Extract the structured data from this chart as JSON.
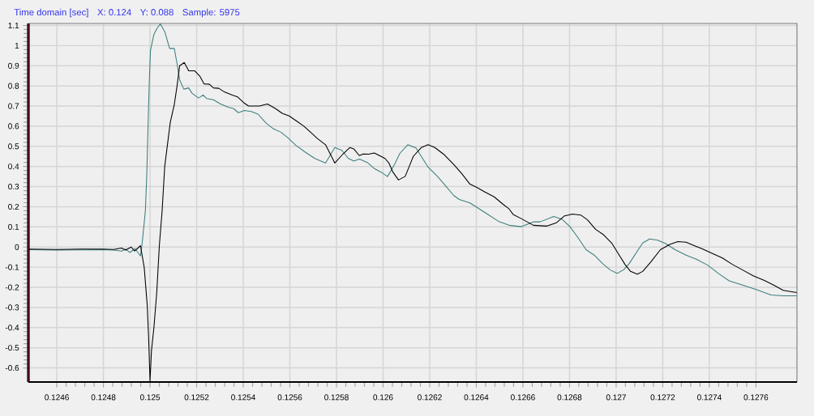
{
  "chart_data": {
    "type": "line",
    "title": "Time domain [sec]",
    "annotations": [
      "X: 0.124",
      "Y: 0.088",
      "Sample: 5975"
    ],
    "xlim": [
      0.124478,
      0.127776
    ],
    "ylim": [
      -0.67,
      1.11
    ],
    "xticks": [
      0.1246,
      0.1248,
      0.125,
      0.1252,
      0.1254,
      0.1256,
      0.1258,
      0.126,
      0.1262,
      0.1264,
      0.1266,
      0.1268,
      0.127,
      0.1272,
      0.1274,
      0.1276
    ],
    "yticks": [
      -0.6,
      -0.5,
      -0.4,
      -0.3,
      -0.2,
      -0.1,
      0,
      0.1,
      0.2,
      0.3,
      0.4,
      0.5,
      0.6,
      0.7,
      0.8,
      0.9,
      1,
      1.1
    ],
    "grid": true,
    "series": [
      {
        "color": "#3d7f7d",
        "x": [
          0.124478,
          0.1246,
          0.124704,
          0.124798,
          0.124843,
          0.124878,
          0.124895,
          0.124913,
          0.124936,
          0.124959,
          0.124965,
          0.124971,
          0.12498,
          0.124986,
          0.124992,
          0.124997,
          0.125002,
          0.125017,
          0.125029,
          0.125044,
          0.125063,
          0.125084,
          0.125104,
          0.125116,
          0.125127,
          0.125145,
          0.125166,
          0.12518,
          0.125208,
          0.125228,
          0.125243,
          0.125272,
          0.125301,
          0.125336,
          0.125359,
          0.125379,
          0.125405,
          0.125434,
          0.125463,
          0.125498,
          0.125527,
          0.125562,
          0.125591,
          0.125626,
          0.125666,
          0.125707,
          0.125753,
          0.125793,
          0.125823,
          0.125851,
          0.125875,
          0.125898,
          0.125932,
          0.125962,
          0.12599,
          0.126019,
          0.126049,
          0.126072,
          0.126106,
          0.126141,
          0.126164,
          0.126193,
          0.126234,
          0.126269,
          0.126303,
          0.126327,
          0.126373,
          0.126396,
          0.126442,
          0.126495,
          0.126541,
          0.126593,
          0.126645,
          0.126674,
          0.126732,
          0.126767,
          0.126802,
          0.126836,
          0.126871,
          0.126906,
          0.126941,
          0.126975,
          0.127005,
          0.127033,
          0.127057,
          0.127091,
          0.127114,
          0.127144,
          0.127178,
          0.127213,
          0.127253,
          0.1273,
          0.127346,
          0.127393,
          0.127439,
          0.127485,
          0.127543,
          0.127601,
          0.127665,
          0.127717,
          0.127775
        ],
        "values": [
          -0.013,
          -0.015,
          -0.014,
          -0.013,
          -0.015,
          -0.02,
          -0.01,
          -0.027,
          -0.008,
          -0.044,
          0.007,
          0.074,
          0.18,
          0.357,
          0.626,
          0.83,
          0.977,
          1.057,
          1.084,
          1.108,
          1.07,
          0.986,
          0.986,
          0.91,
          0.83,
          0.784,
          0.79,
          0.764,
          0.74,
          0.755,
          0.737,
          0.731,
          0.711,
          0.694,
          0.687,
          0.667,
          0.678,
          0.673,
          0.66,
          0.615,
          0.589,
          0.57,
          0.543,
          0.505,
          0.471,
          0.44,
          0.417,
          0.494,
          0.48,
          0.44,
          0.427,
          0.437,
          0.42,
          0.39,
          0.373,
          0.35,
          0.41,
          0.465,
          0.508,
          0.492,
          0.45,
          0.397,
          0.35,
          0.303,
          0.256,
          0.236,
          0.219,
          0.202,
          0.168,
          0.128,
          0.108,
          0.101,
          0.125,
          0.125,
          0.152,
          0.139,
          0.101,
          0.047,
          -0.013,
          -0.04,
          -0.081,
          -0.114,
          -0.131,
          -0.112,
          -0.081,
          -0.02,
          0.02,
          0.04,
          0.034,
          0.017,
          -0.013,
          -0.04,
          -0.061,
          -0.09,
          -0.131,
          -0.168,
          -0.189,
          -0.211,
          -0.238,
          -0.242,
          -0.242
        ]
      },
      {
        "color": "#000000",
        "x": [
          0.124478,
          0.1246,
          0.124704,
          0.124798,
          0.124843,
          0.124878,
          0.124895,
          0.124919,
          0.124934,
          0.124948,
          0.124959,
          0.124975,
          0.124988,
          0.124994,
          0.125,
          0.125006,
          0.125017,
          0.125029,
          0.12504,
          0.125052,
          0.125063,
          0.125087,
          0.125104,
          0.125116,
          0.125127,
          0.125147,
          0.125166,
          0.125191,
          0.125214,
          0.125232,
          0.125255,
          0.125272,
          0.125295,
          0.125319,
          0.125353,
          0.125376,
          0.125405,
          0.125423,
          0.125469,
          0.125504,
          0.125539,
          0.125567,
          0.125597,
          0.125631,
          0.12566,
          0.125689,
          0.125718,
          0.125753,
          0.125793,
          0.125828,
          0.125857,
          0.125875,
          0.125898,
          0.125915,
          0.125938,
          0.125962,
          0.12599,
          0.126008,
          0.126025,
          0.126043,
          0.126066,
          0.126095,
          0.12613,
          0.126164,
          0.126193,
          0.126222,
          0.126263,
          0.126303,
          0.126338,
          0.126373,
          0.126402,
          0.126437,
          0.126477,
          0.126512,
          0.126541,
          0.126558,
          0.126593,
          0.126645,
          0.126703,
          0.126744,
          0.126779,
          0.126813,
          0.126848,
          0.126877,
          0.126912,
          0.126946,
          0.126981,
          0.12701,
          0.127039,
          0.127062,
          0.127091,
          0.127114,
          0.127149,
          0.12719,
          0.12723,
          0.127265,
          0.1273,
          0.127335,
          0.12737,
          0.127404,
          0.127456,
          0.127497,
          0.127543,
          0.12759,
          0.127636,
          0.127676,
          0.127717,
          0.127775
        ],
        "values": [
          -0.01,
          -0.012,
          -0.01,
          -0.01,
          -0.012,
          -0.005,
          -0.015,
          0,
          -0.02,
          -0.005,
          0.007,
          -0.101,
          -0.29,
          -0.452,
          -0.665,
          -0.517,
          -0.396,
          -0.222,
          0.008,
          0.182,
          0.4,
          0.62,
          0.707,
          0.8,
          0.9,
          0.916,
          0.875,
          0.875,
          0.848,
          0.81,
          0.808,
          0.79,
          0.788,
          0.77,
          0.754,
          0.745,
          0.714,
          0.7,
          0.7,
          0.71,
          0.687,
          0.664,
          0.651,
          0.624,
          0.6,
          0.57,
          0.539,
          0.508,
          0.417,
          0.462,
          0.494,
          0.487,
          0.454,
          0.462,
          0.461,
          0.467,
          0.451,
          0.44,
          0.417,
          0.371,
          0.333,
          0.351,
          0.451,
          0.494,
          0.508,
          0.494,
          0.458,
          0.41,
          0.364,
          0.312,
          0.296,
          0.273,
          0.249,
          0.215,
          0.189,
          0.162,
          0.141,
          0.108,
          0.104,
          0.121,
          0.155,
          0.164,
          0.159,
          0.135,
          0.088,
          0.061,
          0.02,
          -0.034,
          -0.088,
          -0.121,
          -0.135,
          -0.121,
          -0.074,
          -0.013,
          0.013,
          0.027,
          0.024,
          0.007,
          -0.009,
          -0.027,
          -0.054,
          -0.085,
          -0.114,
          -0.144,
          -0.166,
          -0.189,
          -0.215,
          -0.226
        ]
      }
    ]
  }
}
